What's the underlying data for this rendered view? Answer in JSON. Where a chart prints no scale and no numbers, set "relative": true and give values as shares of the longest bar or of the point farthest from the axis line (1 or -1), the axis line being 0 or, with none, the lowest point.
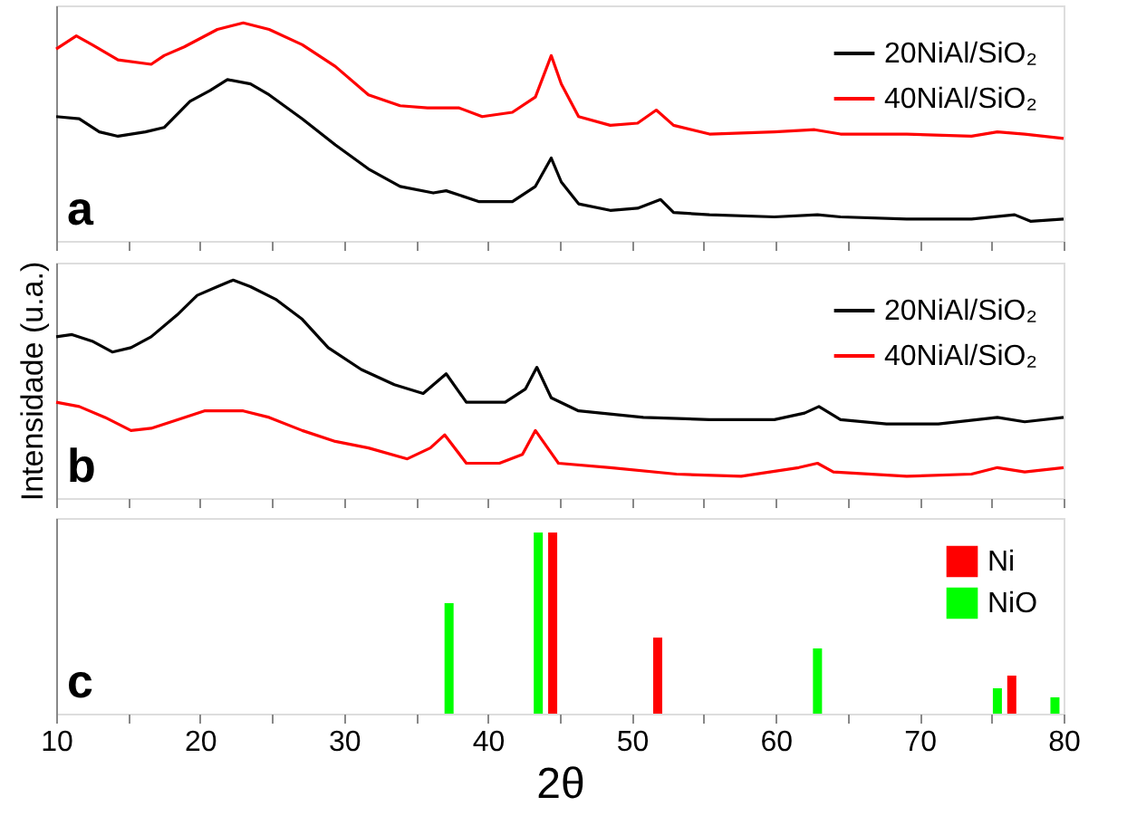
{
  "chart_data": [
    {
      "type": "line",
      "relative": true,
      "xlim": [
        10,
        80
      ],
      "xticks": [
        10,
        {
          "value": 15,
          "label": null
        },
        20,
        {
          "value": 25,
          "label": null
        },
        30,
        {
          "value": 35,
          "label": null
        },
        40,
        {
          "value": 45,
          "label": null
        },
        50,
        {
          "value": 55,
          "label": null
        },
        60,
        {
          "value": 65,
          "label": null
        },
        70,
        {
          "value": 75,
          "label": null
        },
        80
      ],
      "tick_labels": false,
      "legend": "top right",
      "annotations": [
        "a"
      ],
      "series": [
        {
          "name": "20NiAl/SiO₂",
          "color": "#000000",
          "x": [
            10.0,
            11.6,
            13.0,
            14.3,
            16.2,
            17.5,
            19.3,
            20.7,
            21.9,
            23.5,
            24.8,
            27.1,
            29.4,
            31.7,
            33.9,
            36.2,
            37.1,
            39.4,
            41.7,
            43.3,
            44.4,
            45.1,
            46.3,
            48.5,
            50.4,
            52.0,
            52.9,
            55.4,
            59.9,
            62.9,
            64.5,
            69.1,
            73.6,
            76.6,
            77.7,
            80.0
          ],
          "values": [
            0.57,
            0.56,
            0.5,
            0.48,
            0.5,
            0.52,
            0.64,
            0.69,
            0.74,
            0.72,
            0.67,
            0.56,
            0.44,
            0.33,
            0.25,
            0.22,
            0.23,
            0.18,
            0.18,
            0.25,
            0.38,
            0.27,
            0.17,
            0.14,
            0.15,
            0.19,
            0.13,
            0.12,
            0.11,
            0.12,
            0.11,
            0.1,
            0.1,
            0.12,
            0.09,
            0.1
          ]
        },
        {
          "name": "40NiAl/SiO₂",
          "color": "#ff0000",
          "x": [
            10.0,
            11.4,
            12.5,
            14.3,
            16.6,
            17.5,
            18.9,
            21.2,
            23.0,
            24.8,
            27.1,
            29.4,
            31.7,
            33.9,
            35.8,
            38.0,
            39.6,
            41.7,
            43.3,
            44.4,
            45.1,
            46.3,
            48.5,
            50.4,
            51.7,
            52.9,
            55.4,
            59.9,
            62.7,
            64.5,
            69.1,
            73.6,
            75.4,
            77.3,
            80.0
          ],
          "values": [
            0.88,
            0.94,
            0.9,
            0.83,
            0.81,
            0.85,
            0.89,
            0.97,
            1.0,
            0.97,
            0.9,
            0.8,
            0.67,
            0.62,
            0.61,
            0.61,
            0.57,
            0.59,
            0.66,
            0.85,
            0.72,
            0.57,
            0.53,
            0.54,
            0.6,
            0.53,
            0.49,
            0.5,
            0.51,
            0.49,
            0.49,
            0.48,
            0.5,
            0.49,
            0.47
          ]
        }
      ]
    },
    {
      "type": "line",
      "relative": true,
      "ylabel": "Intensidade (u.a.)",
      "xlim": [
        10,
        80
      ],
      "xticks": [
        10,
        {
          "value": 15,
          "label": null
        },
        20,
        {
          "value": 25,
          "label": null
        },
        30,
        {
          "value": 35,
          "label": null
        },
        40,
        {
          "value": 45,
          "label": null
        },
        50,
        {
          "value": 55,
          "label": null
        },
        60,
        {
          "value": 65,
          "label": null
        },
        70,
        {
          "value": 75,
          "label": null
        },
        80
      ],
      "tick_labels": false,
      "legend": "top right",
      "annotations": [
        "b"
      ],
      "series": [
        {
          "name": "20NiAl/SiO₂",
          "color": "#000000",
          "x": [
            10.0,
            11.1,
            12.5,
            13.9,
            15.2,
            16.6,
            18.4,
            19.8,
            21.2,
            22.3,
            23.5,
            25.3,
            27.1,
            28.9,
            31.2,
            33.5,
            35.5,
            37.1,
            38.5,
            41.2,
            42.6,
            43.4,
            44.4,
            46.3,
            50.8,
            55.4,
            59.9,
            62.0,
            63.0,
            64.5,
            67.7,
            71.3,
            75.4,
            77.3,
            80.0
          ],
          "values": [
            0.74,
            0.75,
            0.72,
            0.67,
            0.69,
            0.74,
            0.84,
            0.93,
            0.97,
            1.0,
            0.97,
            0.91,
            0.82,
            0.69,
            0.59,
            0.52,
            0.48,
            0.57,
            0.44,
            0.44,
            0.5,
            0.6,
            0.46,
            0.4,
            0.37,
            0.36,
            0.36,
            0.39,
            0.42,
            0.36,
            0.34,
            0.34,
            0.37,
            0.35,
            0.37
          ]
        },
        {
          "name": "40NiAl/SiO₂",
          "color": "#ff0000",
          "x": [
            10.0,
            11.6,
            13.4,
            15.2,
            16.6,
            18.0,
            20.3,
            23.0,
            24.8,
            27.1,
            29.4,
            31.7,
            34.4,
            36.0,
            37.0,
            38.5,
            40.8,
            42.4,
            43.3,
            44.9,
            48.5,
            53.1,
            57.6,
            61.6,
            62.9,
            64.0,
            69.1,
            73.6,
            75.4,
            77.3,
            80.0
          ],
          "values": [
            0.44,
            0.42,
            0.37,
            0.31,
            0.32,
            0.35,
            0.4,
            0.4,
            0.37,
            0.31,
            0.26,
            0.23,
            0.18,
            0.23,
            0.29,
            0.16,
            0.16,
            0.2,
            0.31,
            0.16,
            0.14,
            0.11,
            0.1,
            0.14,
            0.16,
            0.12,
            0.1,
            0.11,
            0.14,
            0.12,
            0.14
          ]
        }
      ]
    },
    {
      "type": "bar",
      "relative": true,
      "xlabel": "2θ",
      "xlim": [
        10,
        80
      ],
      "xticks": [
        10,
        {
          "value": 15,
          "label": null
        },
        20,
        {
          "value": 25,
          "label": null
        },
        30,
        {
          "value": 35,
          "label": null
        },
        40,
        {
          "value": 45,
          "label": null
        },
        50,
        {
          "value": 55,
          "label": null
        },
        60,
        {
          "value": 65,
          "label": null
        },
        70,
        {
          "value": 75,
          "label": null
        },
        80
      ],
      "tick_labels": "x",
      "legend": "top right",
      "annotations": [
        "c"
      ],
      "series": [
        {
          "name": "Ni",
          "color": "#ff0000",
          "x": [
            44.5,
            51.8,
            76.4
          ],
          "values": [
            1.0,
            0.42,
            0.21
          ]
        },
        {
          "name": "NiO",
          "color": "#00ff00",
          "x": [
            37.3,
            43.5,
            62.9,
            75.4,
            79.4
          ],
          "values": [
            0.61,
            1.0,
            0.36,
            0.14,
            0.09
          ]
        }
      ]
    }
  ]
}
